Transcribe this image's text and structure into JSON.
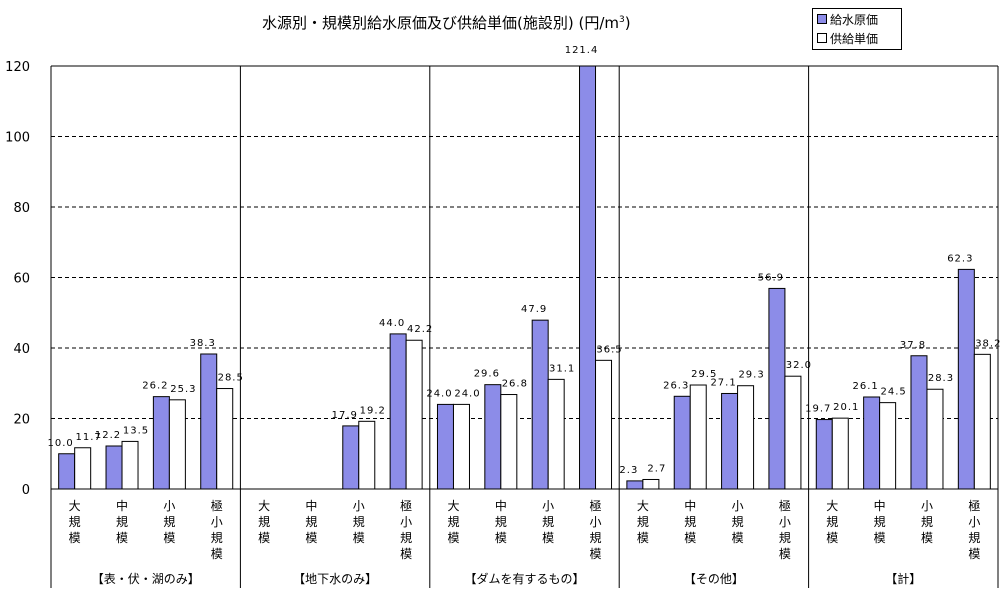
{
  "title": "水源別・規模別給水原価及び供給単価(施設別) (円/m",
  "title_sup": "3",
  "title_end": ")",
  "legend": [
    {
      "name": "給水原価",
      "color": "#8c8ce8"
    },
    {
      "name": "供給単価",
      "color": "#ffffff"
    }
  ],
  "chart_data": {
    "type": "bar",
    "title": "水源別・規模別給水原価及び供給単価(施設別) (円/m3)",
    "ylim": [
      0,
      120
    ],
    "yticks": [
      0,
      20,
      40,
      60,
      80,
      100,
      120
    ],
    "grid": true,
    "groups": [
      {
        "label": "【表・伏・湖のみ】",
        "categories": [
          "大規模",
          "中規模",
          "小規模",
          "極小規模"
        ],
        "cost": [
          10.0,
          12.2,
          26.2,
          38.3
        ],
        "price": [
          11.7,
          13.5,
          25.3,
          28.5
        ]
      },
      {
        "label": "【地下水のみ】",
        "categories": [
          "大規模",
          "中規模",
          "小規模",
          "極小規模"
        ],
        "cost": [
          null,
          null,
          17.9,
          44.0
        ],
        "price": [
          null,
          null,
          19.2,
          42.2
        ]
      },
      {
        "label": "【ダムを有するもの】",
        "categories": [
          "大規模",
          "中規模",
          "小規模",
          "極小規模"
        ],
        "cost": [
          24.0,
          29.6,
          47.9,
          121.4
        ],
        "price": [
          24.0,
          26.8,
          31.1,
          36.5
        ]
      },
      {
        "label": "【その他】",
        "categories": [
          "大規模",
          "中規模",
          "小規模",
          "極小規模"
        ],
        "cost": [
          2.3,
          26.3,
          27.1,
          56.9
        ],
        "price": [
          2.7,
          29.5,
          29.3,
          32.0
        ]
      },
      {
        "label": "【計】",
        "categories": [
          "大規模",
          "中規模",
          "小規模",
          "極小規模"
        ],
        "cost": [
          19.7,
          26.1,
          37.8,
          62.3
        ],
        "price": [
          20.1,
          24.5,
          28.3,
          38.2
        ]
      }
    ],
    "series": [
      {
        "name": "給水原価",
        "color": "#8c8ce8"
      },
      {
        "name": "供給単価",
        "color": "#ffffff"
      }
    ]
  }
}
